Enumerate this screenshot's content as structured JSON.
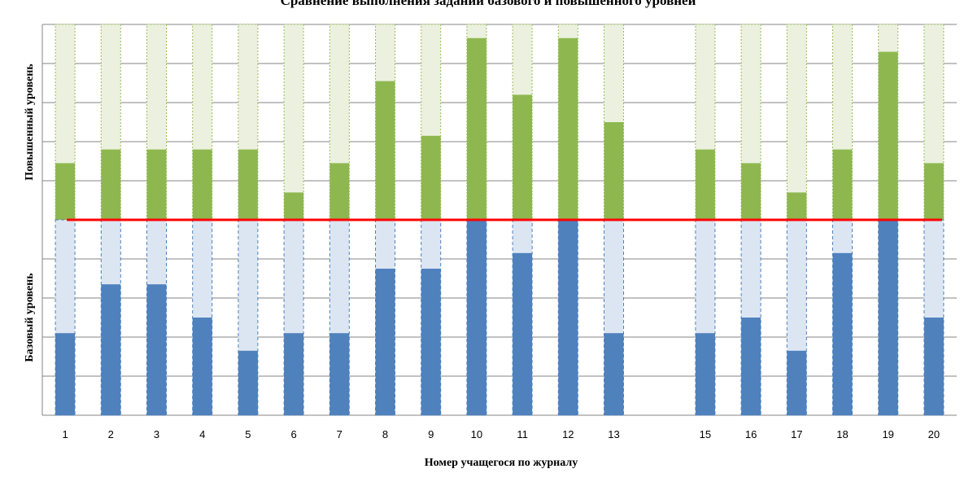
{
  "chart_data": {
    "type": "bar",
    "title": "Сравнение выполнения заданий базового и повышенного уровней",
    "xlabel": "Номер учащегося по журналу",
    "ylabel_top": "Повышенный уровень",
    "ylabel_bottom": "Базовый уровень",
    "categories": [
      "1",
      "2",
      "3",
      "4",
      "5",
      "6",
      "7",
      "8",
      "9",
      "10",
      "11",
      "12",
      "13",
      "14",
      "15",
      "16",
      "17",
      "18",
      "19",
      "20"
    ],
    "tick_labels": [
      "1",
      "2",
      "3",
      "4",
      "5",
      "6",
      "7",
      "8",
      "9",
      "10",
      "11",
      "12",
      "13",
      "",
      "15",
      "16",
      "17",
      "18",
      "19",
      "20"
    ],
    "series": [
      {
        "name": "",
        "level": "advanced",
        "values": [
          0.29,
          0.36,
          0.36,
          0.36,
          0.36,
          0.14,
          0.29,
          0.71,
          0.43,
          0.93,
          0.64,
          0.93,
          0.5,
          null,
          0.36,
          0.29,
          0.14,
          0.36,
          0.86,
          0.29
        ],
        "color": "#8eb84f",
        "empty_color": "#ebf1de",
        "edge_color": "#9bbb59"
      },
      {
        "name": "",
        "level": "basic",
        "values": [
          0.42,
          0.67,
          0.67,
          0.5,
          0.33,
          0.42,
          0.42,
          0.75,
          0.75,
          1.0,
          0.83,
          1.0,
          0.42,
          null,
          0.42,
          0.5,
          0.33,
          0.83,
          1.0,
          0.5
        ],
        "color": "#4f81bd",
        "empty_color": "#dce6f2",
        "edge_color": "#4f81bd"
      }
    ],
    "ylim": [
      0,
      1
    ],
    "grid": true,
    "legend": "none",
    "divider_color": "#ff0000",
    "gridline_color": "#868686"
  }
}
